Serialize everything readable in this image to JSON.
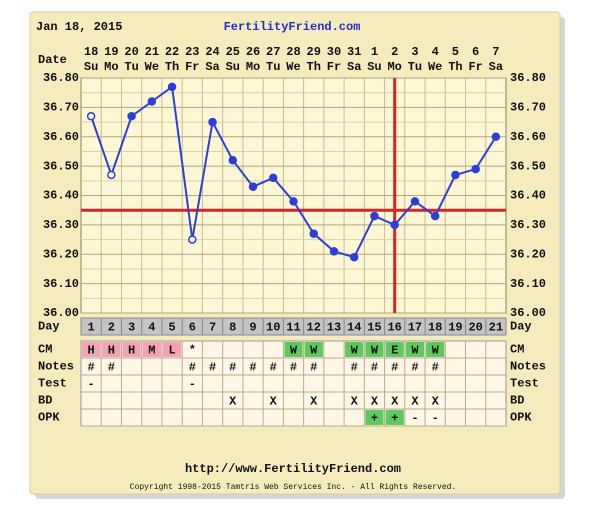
{
  "chart_data": {
    "type": "line",
    "date": "Jan 18, 2015",
    "title": "FertilityFriend.com",
    "x_label": "Date",
    "dates": [
      "18",
      "19",
      "20",
      "21",
      "22",
      "23",
      "24",
      "25",
      "26",
      "27",
      "28",
      "29",
      "30",
      "31",
      "1",
      "2",
      "3",
      "4",
      "5",
      "6",
      "7"
    ],
    "weekdays": [
      "Su",
      "Mo",
      "Tu",
      "We",
      "Th",
      "Fr",
      "Sa",
      "Su",
      "Mo",
      "Tu",
      "We",
      "Th",
      "Fr",
      "Sa",
      "Su",
      "Mo",
      "Tu",
      "We",
      "Th",
      "Fr",
      "Sa"
    ],
    "category_label": "Day",
    "categories": [
      "1",
      "2",
      "3",
      "4",
      "5",
      "6",
      "7",
      "8",
      "9",
      "10",
      "11",
      "12",
      "13",
      "14",
      "15",
      "16",
      "17",
      "18",
      "19",
      "20",
      "21"
    ],
    "values": [
      36.67,
      36.47,
      36.67,
      36.72,
      36.77,
      36.25,
      36.65,
      36.52,
      36.43,
      36.46,
      36.38,
      36.27,
      36.21,
      36.19,
      36.33,
      36.3,
      36.38,
      36.33,
      36.47,
      36.49,
      36.6
    ],
    "open_markers": [
      true,
      true,
      false,
      false,
      false,
      true,
      false,
      false,
      false,
      false,
      false,
      false,
      false,
      false,
      false,
      false,
      false,
      false,
      false,
      false,
      false
    ],
    "color": "#2e3fd8",
    "ylim": [
      36.0,
      36.8
    ],
    "yticks": [
      {
        "value": 36.0,
        "label": "36.00"
      },
      {
        "value": 36.1,
        "label": "36.10"
      },
      {
        "value": 36.2,
        "label": "36.20"
      },
      {
        "value": 36.3,
        "label": "36.30"
      },
      {
        "value": 36.4,
        "label": "36.40"
      },
      {
        "value": 36.5,
        "label": "36.50"
      },
      {
        "value": 36.6,
        "label": "36.60"
      },
      {
        "value": 36.7,
        "label": "36.70"
      },
      {
        "value": 36.8,
        "label": "36.80"
      }
    ],
    "grid": true,
    "coverline": 36.35,
    "ovulation_day": "16",
    "marker_line_color": "#d62424",
    "rows": [
      {
        "label": "CM",
        "cells": [
          "H",
          "H",
          "H",
          "M",
          "L",
          "*",
          null,
          null,
          null,
          null,
          "W",
          "W",
          null,
          "W",
          "W",
          "E",
          "W",
          "W",
          null,
          null,
          null
        ],
        "fills": [
          "#f4a3b4",
          "#f4a3b4",
          "#f4a3b4",
          "#f4a3b4",
          "#f4a3b4",
          null,
          null,
          null,
          null,
          null,
          "#5fc85f",
          "#5fc85f",
          null,
          "#5fc85f",
          "#5fc85f",
          "#5fc85f",
          "#5fc85f",
          "#5fc85f",
          null,
          null,
          null
        ]
      },
      {
        "label": "Notes",
        "cells": [
          "#",
          "#",
          null,
          null,
          null,
          "#",
          "#",
          "#",
          "#",
          "#",
          "#",
          "#",
          null,
          "#",
          "#",
          "#",
          "#",
          "#",
          null,
          null,
          null
        ]
      },
      {
        "label": "Test",
        "cells": [
          "-",
          null,
          null,
          null,
          null,
          "-",
          null,
          null,
          null,
          null,
          null,
          null,
          null,
          null,
          null,
          null,
          null,
          null,
          null,
          null,
          null
        ]
      },
      {
        "label": "BD",
        "cells": [
          null,
          null,
          null,
          null,
          null,
          null,
          null,
          "X",
          null,
          "X",
          null,
          "X",
          null,
          "X",
          "X",
          "X",
          "X",
          "X",
          null,
          null,
          null
        ]
      },
      {
        "label": "OPK",
        "cells": [
          null,
          null,
          null,
          null,
          null,
          null,
          null,
          null,
          null,
          null,
          null,
          null,
          null,
          null,
          "+",
          "+",
          "-",
          "-",
          null,
          null,
          null
        ],
        "fills": [
          null,
          null,
          null,
          null,
          null,
          null,
          null,
          null,
          null,
          null,
          null,
          null,
          null,
          null,
          "#5fc85f",
          "#5fc85f",
          null,
          null,
          null,
          null,
          null
        ]
      }
    ],
    "url": "http://www.FertilityFriend.com",
    "copyright": "Copyright 1998-2015 Tamtris Web Services Inc. - All Rights Reserved."
  }
}
